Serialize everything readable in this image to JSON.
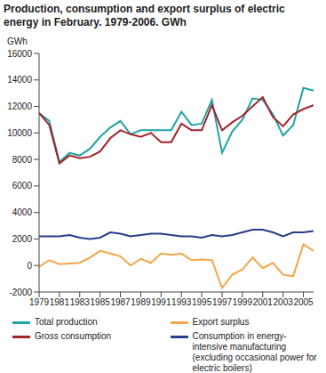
{
  "chart_data": {
    "type": "line",
    "title": "Production, consumption and export surplus of electric energy in February. 1979-2006. GWh",
    "y_label": "GWh",
    "x": [
      1979,
      1980,
      1981,
      1982,
      1983,
      1984,
      1985,
      1986,
      1987,
      1988,
      1989,
      1990,
      1991,
      1992,
      1993,
      1994,
      1995,
      1996,
      1997,
      1998,
      1999,
      2000,
      2001,
      2002,
      2003,
      2004,
      2005,
      2006
    ],
    "xlim": [
      1979,
      2006
    ],
    "xticks": [
      1979,
      1981,
      1983,
      1985,
      1987,
      1989,
      1991,
      1993,
      1995,
      1997,
      1999,
      2001,
      2003,
      2005
    ],
    "ylim": [
      -2000,
      16000
    ],
    "yticks": [
      -2000,
      0,
      2000,
      4000,
      6000,
      8000,
      10000,
      12000,
      14000,
      16000
    ],
    "grid": false,
    "legend": "bottom",
    "series": [
      {
        "name": "Total production",
        "color": "#1fa3a3",
        "values": [
          11500,
          10900,
          7800,
          8500,
          8300,
          8800,
          9700,
          10400,
          10900,
          9900,
          10200,
          10200,
          10200,
          10200,
          11600,
          10600,
          10700,
          12500,
          8500,
          10100,
          11000,
          12600,
          12500,
          11400,
          9800,
          10600,
          13400,
          13200
        ]
      },
      {
        "name": "Export surplus",
        "color": "#f5a54a",
        "values": [
          -100,
          400,
          100,
          150,
          200,
          600,
          1100,
          900,
          700,
          0,
          500,
          200,
          900,
          800,
          900,
          400,
          450,
          400,
          -1700,
          -700,
          -300,
          600,
          -200,
          200,
          -700,
          -800,
          1600,
          1100
        ]
      },
      {
        "name": "Gross consumption",
        "color": "#a3232a",
        "values": [
          11500,
          10600,
          7700,
          8300,
          8100,
          8200,
          8600,
          9600,
          10200,
          9900,
          9700,
          10000,
          9300,
          9300,
          10700,
          10200,
          10200,
          12100,
          10200,
          10800,
          11300,
          12000,
          12700,
          11200,
          10500,
          11400,
          11800,
          12100
        ]
      },
      {
        "name": "Consumption in energy-intensive manufacturing (excluding occasional power for electric boilers)",
        "color": "#283c8c",
        "values": [
          2200,
          2200,
          2200,
          2300,
          2100,
          2000,
          2100,
          2500,
          2400,
          2200,
          2300,
          2400,
          2400,
          2300,
          2200,
          2200,
          2100,
          2300,
          2200,
          2300,
          2500,
          2700,
          2700,
          2500,
          2200,
          2500,
          2500,
          2600
        ]
      }
    ]
  }
}
